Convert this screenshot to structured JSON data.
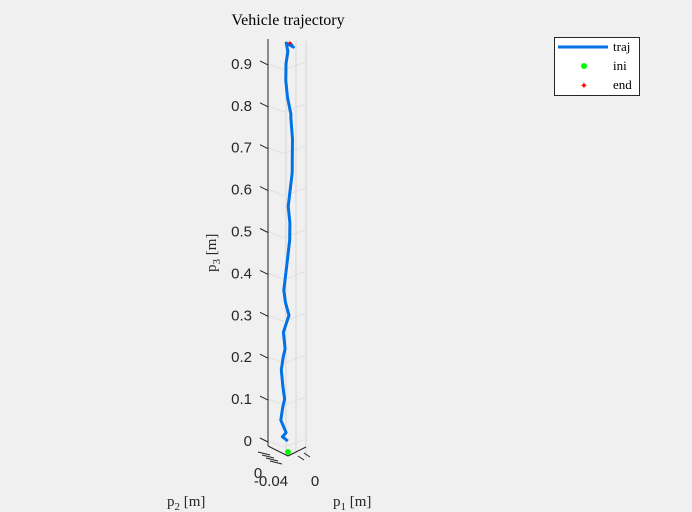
{
  "chart_data": {
    "type": "line",
    "title": "Vehicle trajectory",
    "xlabel_main": "p",
    "xlabel_sub": "1",
    "xlabel_unit": " [m]",
    "ylabel_main": "p",
    "ylabel_sub": "2",
    "ylabel_unit": " [m]",
    "zlabel_main": "p",
    "zlabel_sub": "3",
    "zlabel_unit": " [m]",
    "zlim": [
      0,
      0.95
    ],
    "zticks": [
      0,
      0.1,
      0.2,
      0.3,
      0.4,
      0.5,
      0.6,
      0.7,
      0.8,
      0.9
    ],
    "ztick_labels": [
      "0",
      "0.1",
      "0.2",
      "0.3",
      "0.4",
      "0.5",
      "0.6",
      "0.7",
      "0.8",
      "0.9"
    ],
    "xtick_labels": [
      "0"
    ],
    "ytick_labels": [
      "-0.04",
      "0"
    ],
    "grid": true,
    "legend_position": "top-right",
    "series": [
      {
        "name": "traj",
        "color": "#0072e6",
        "p3": [
          0.0,
          0.01,
          0.02,
          0.05,
          0.08,
          0.1,
          0.13,
          0.17,
          0.2,
          0.22,
          0.26,
          0.3,
          0.33,
          0.36,
          0.4,
          0.44,
          0.48,
          0.52,
          0.56,
          0.6,
          0.64,
          0.68,
          0.72,
          0.77,
          0.78,
          0.82,
          0.86,
          0.9,
          0.93,
          0.95,
          0.94,
          0.95
        ],
        "offset": [
          0.002,
          -0.004,
          0.0,
          -0.006,
          -0.004,
          -0.002,
          -0.004,
          -0.006,
          -0.004,
          -0.002,
          -0.004,
          0.002,
          -0.002,
          -0.004,
          -0.002,
          0.0,
          0.002,
          0.002,
          0.0,
          0.002,
          0.004,
          0.004,
          0.004,
          0.002,
          0.002,
          -0.002,
          -0.004,
          -0.004,
          -0.002,
          -0.004,
          0.004,
          0.0
        ]
      },
      {
        "name": "ini",
        "color": "#00ff00",
        "p3": [
          0.0
        ]
      },
      {
        "name": "end",
        "color": "#ff0000",
        "p3": [
          0.95
        ]
      }
    ]
  }
}
